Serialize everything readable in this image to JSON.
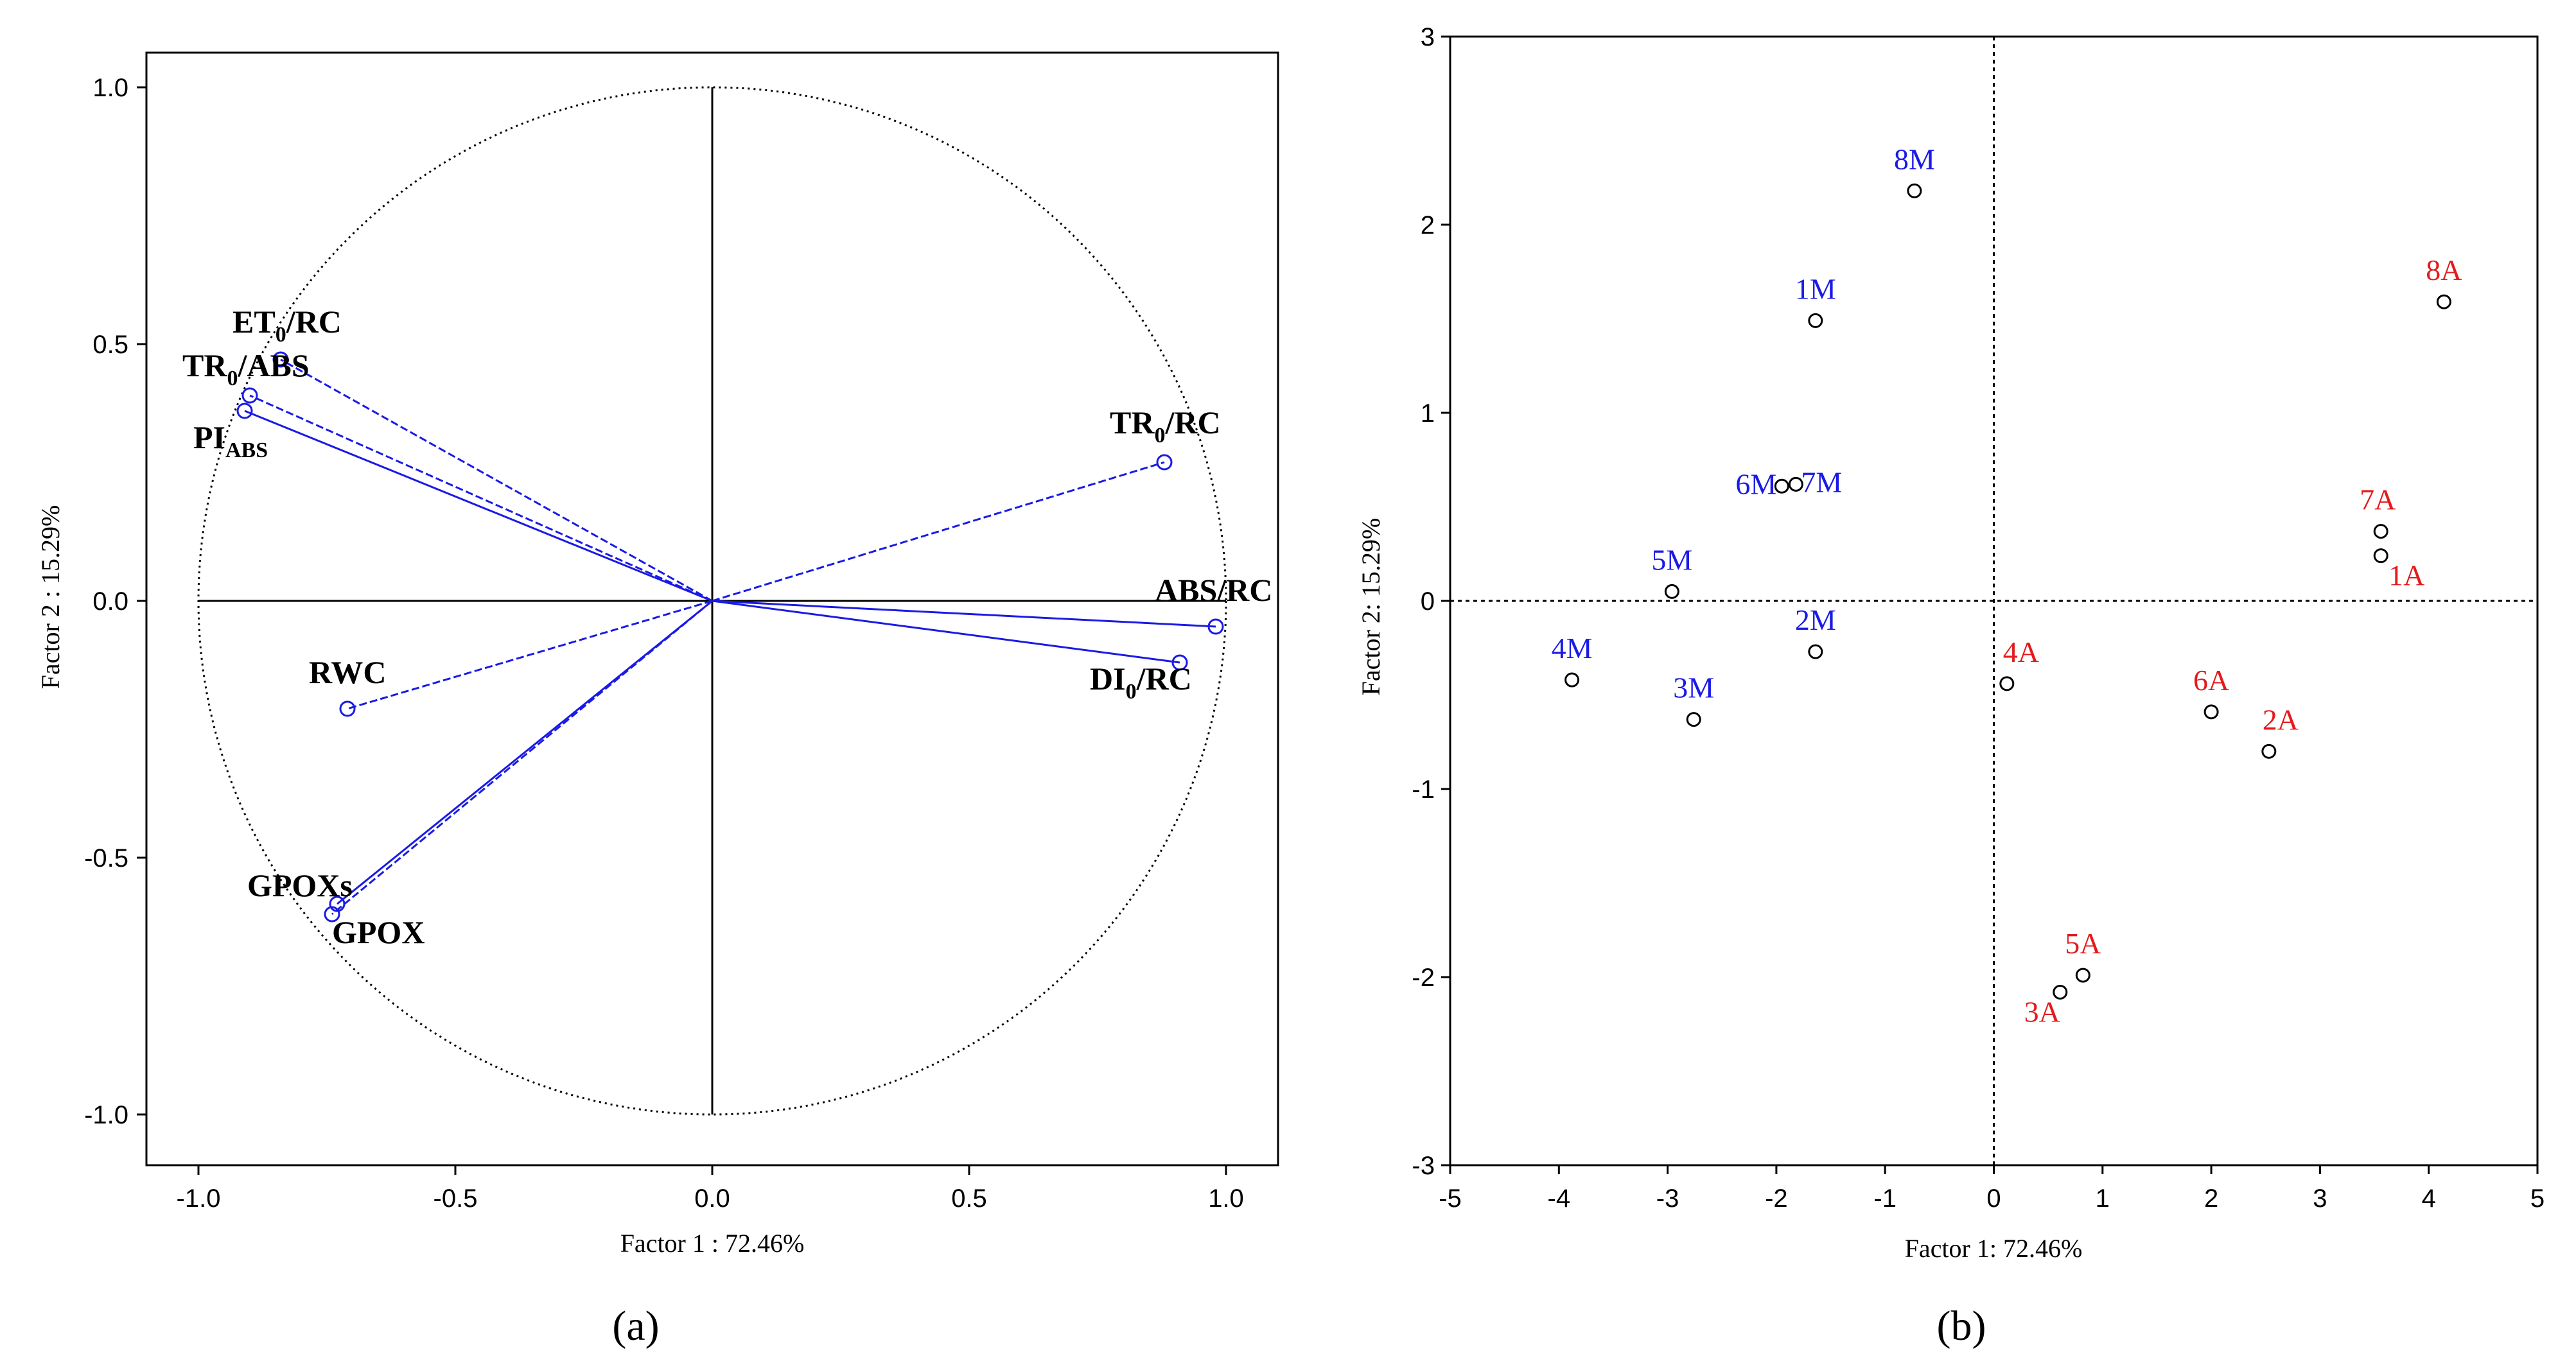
{
  "chart_data": [
    {
      "type": "scatter",
      "subtype": "pca-correlation-circle",
      "panel_label": "(a)",
      "xlabel": "Factor 1 : 72.46%",
      "ylabel": "Factor 2 : 15.29%",
      "xlim": [
        -1.1,
        1.1
      ],
      "ylim": [
        -1.1,
        1.1
      ],
      "xticks": [
        "-1.0",
        "-0.5",
        "0.0",
        "0.5",
        "1.0"
      ],
      "yticks": [
        "-1.0",
        "-0.5",
        "0.0",
        "0.5",
        "1.0"
      ],
      "unit_circle": true,
      "vector_color": "#1a1ae6",
      "series": [
        {
          "name": "ET0/RC",
          "label_main": "ET",
          "label_sub": "0",
          "label_rest": "/RC",
          "x": -0.84,
          "y": 0.47,
          "style": "dashed"
        },
        {
          "name": "TR0/ABS",
          "label_main": "TR",
          "label_sub": "0",
          "label_rest": "/ABS",
          "x": -0.9,
          "y": 0.4,
          "style": "dashed"
        },
        {
          "name": "PIABS",
          "label_main": "PI",
          "label_sub": "ABS",
          "label_rest": "",
          "x": -0.91,
          "y": 0.37,
          "style": "solid"
        },
        {
          "name": "TR0/RC",
          "label_main": "TR",
          "label_sub": "0",
          "label_rest": "/RC",
          "x": 0.88,
          "y": 0.27,
          "style": "dashed"
        },
        {
          "name": "ABS/RC",
          "label_main": "ABS/RC",
          "label_sub": "",
          "label_rest": "",
          "x": 0.98,
          "y": -0.05,
          "style": "solid"
        },
        {
          "name": "DI0/RC",
          "label_main": "DI",
          "label_sub": "0",
          "label_rest": "/RC",
          "x": 0.91,
          "y": -0.12,
          "style": "solid"
        },
        {
          "name": "RWC",
          "label_main": "RWC",
          "label_sub": "",
          "label_rest": "",
          "x": -0.71,
          "y": -0.21,
          "style": "dashed"
        },
        {
          "name": "GPOXs",
          "label_main": "GPOXs",
          "label_sub": "",
          "label_rest": "",
          "x": -0.73,
          "y": -0.59,
          "style": "solid"
        },
        {
          "name": "GPOX",
          "label_main": "GPOX",
          "label_sub": "",
          "label_rest": "",
          "x": -0.74,
          "y": -0.61,
          "style": "dashed"
        }
      ]
    },
    {
      "type": "scatter",
      "panel_label": "(b)",
      "xlabel": "Factor 1: 72.46%",
      "ylabel": "Factor 2: 15.29%",
      "xlim": [
        -5,
        5
      ],
      "ylim": [
        -3,
        3
      ],
      "xticks": [
        "-5",
        "-4",
        "-3",
        "-2",
        "-1",
        "0",
        "1",
        "2",
        "3",
        "4",
        "5"
      ],
      "yticks": [
        "-3",
        "-2",
        "-1",
        "0",
        "1",
        "2",
        "3"
      ],
      "series": [
        {
          "name": "M",
          "color": "#1a1ae6",
          "points": [
            {
              "label": "8M",
              "x": -0.73,
              "y": 2.18
            },
            {
              "label": "1M",
              "x": -1.64,
              "y": 1.49
            },
            {
              "label": "6M",
              "x": -1.95,
              "y": 0.61
            },
            {
              "label": "7M",
              "x": -1.82,
              "y": 0.62
            },
            {
              "label": "5M",
              "x": -2.96,
              "y": 0.05
            },
            {
              "label": "2M",
              "x": -1.64,
              "y": -0.27
            },
            {
              "label": "4M",
              "x": -3.88,
              "y": -0.42
            },
            {
              "label": "3M",
              "x": -2.76,
              "y": -0.63
            }
          ]
        },
        {
          "name": "A",
          "color": "#e41a1c",
          "points": [
            {
              "label": "8A",
              "x": 4.14,
              "y": 1.59
            },
            {
              "label": "7A",
              "x": 3.56,
              "y": 0.37
            },
            {
              "label": "1A",
              "x": 3.56,
              "y": 0.24
            },
            {
              "label": "4A",
              "x": 0.12,
              "y": -0.44
            },
            {
              "label": "6A",
              "x": 2.0,
              "y": -0.59
            },
            {
              "label": "2A",
              "x": 2.53,
              "y": -0.8
            },
            {
              "label": "5A",
              "x": 0.82,
              "y": -1.99
            },
            {
              "label": "3A",
              "x": 0.61,
              "y": -2.08
            }
          ]
        }
      ]
    }
  ]
}
